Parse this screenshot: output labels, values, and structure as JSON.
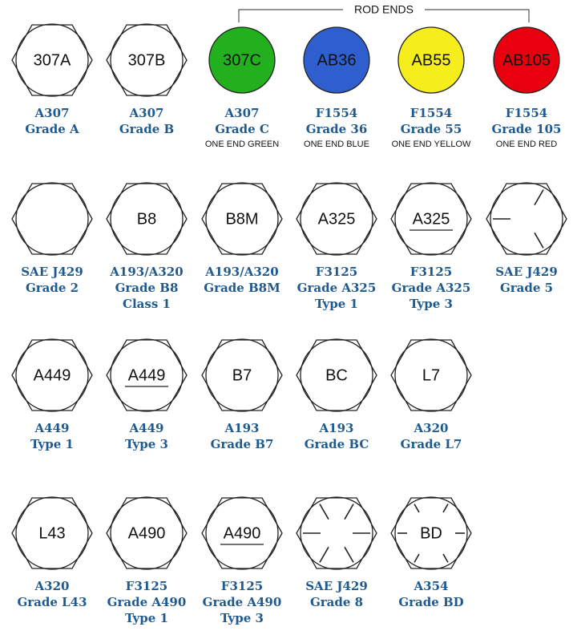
{
  "bracket_label": "ROD ENDS",
  "rows": [
    [
      {
        "shape": "hex",
        "marking": "307A",
        "lines": [
          "A307",
          "Grade A"
        ]
      },
      {
        "shape": "hex",
        "marking": "307B",
        "lines": [
          "A307",
          "Grade B"
        ]
      },
      {
        "shape": "circle",
        "fill": "#22b01e",
        "marking": "307C",
        "lines": [
          "A307",
          "Grade C"
        ],
        "note": "ONE END GREEN"
      },
      {
        "shape": "circle",
        "fill": "#2f5fcf",
        "marking": "AB36",
        "lines": [
          "F1554",
          "Grade 36"
        ],
        "note": "ONE END BLUE"
      },
      {
        "shape": "circle",
        "fill": "#f5ee1c",
        "marking": "AB55",
        "lines": [
          "F1554",
          "Grade 55"
        ],
        "note": "ONE END YELLOW"
      },
      {
        "shape": "circle",
        "fill": "#e8000f",
        "marking": "AB105",
        "lines": [
          "F1554",
          "Grade 105"
        ],
        "note": "ONE END RED"
      }
    ],
    [
      {
        "shape": "hex",
        "lines": [
          "SAE J429",
          "Grade 2"
        ]
      },
      {
        "shape": "hex",
        "marking": "B8",
        "lines": [
          "A193/A320",
          "Grade B8",
          "Class 1"
        ]
      },
      {
        "shape": "hex",
        "marking": "B8M",
        "lines": [
          "A193/A320",
          "Grade B8M"
        ]
      },
      {
        "shape": "hex",
        "marking": "A325",
        "lines": [
          "F3125",
          "Grade A325",
          "Type 1"
        ]
      },
      {
        "shape": "hex",
        "marking": "A325",
        "underline": true,
        "lines": [
          "F3125",
          "Grade A325",
          "Type 3"
        ]
      },
      {
        "shape": "hex",
        "radial_lines": 3,
        "lines": [
          "SAE J429",
          "Grade 5"
        ]
      }
    ],
    [
      {
        "shape": "hex",
        "marking": "A449",
        "lines": [
          "A449",
          "Type 1"
        ]
      },
      {
        "shape": "hex",
        "marking": "A449",
        "underline": true,
        "lines": [
          "A449",
          "Type 3"
        ]
      },
      {
        "shape": "hex",
        "marking": "B7",
        "lines": [
          "A193",
          "Grade B7"
        ]
      },
      {
        "shape": "hex",
        "marking": "BC",
        "lines": [
          "A193",
          "Grade BC"
        ]
      },
      {
        "shape": "hex",
        "marking": "L7",
        "lines": [
          "A320",
          "Grade L7"
        ]
      }
    ],
    [
      {
        "shape": "hex",
        "marking": "L43",
        "lines": [
          "A320",
          "Grade L43"
        ]
      },
      {
        "shape": "hex",
        "marking": "A490",
        "lines": [
          "F3125",
          "Grade A490",
          "Type 1"
        ]
      },
      {
        "shape": "hex",
        "marking": "A490",
        "underline": true,
        "lines": [
          "F3125",
          "Grade A490",
          "Type 3"
        ]
      },
      {
        "shape": "hex",
        "radial_lines": 6,
        "lines": [
          "SAE J429",
          "Grade 8"
        ]
      },
      {
        "shape": "hex",
        "radial_lines": 6,
        "marking": "BD",
        "lines": [
          "A354",
          "Grade BD"
        ]
      }
    ]
  ]
}
